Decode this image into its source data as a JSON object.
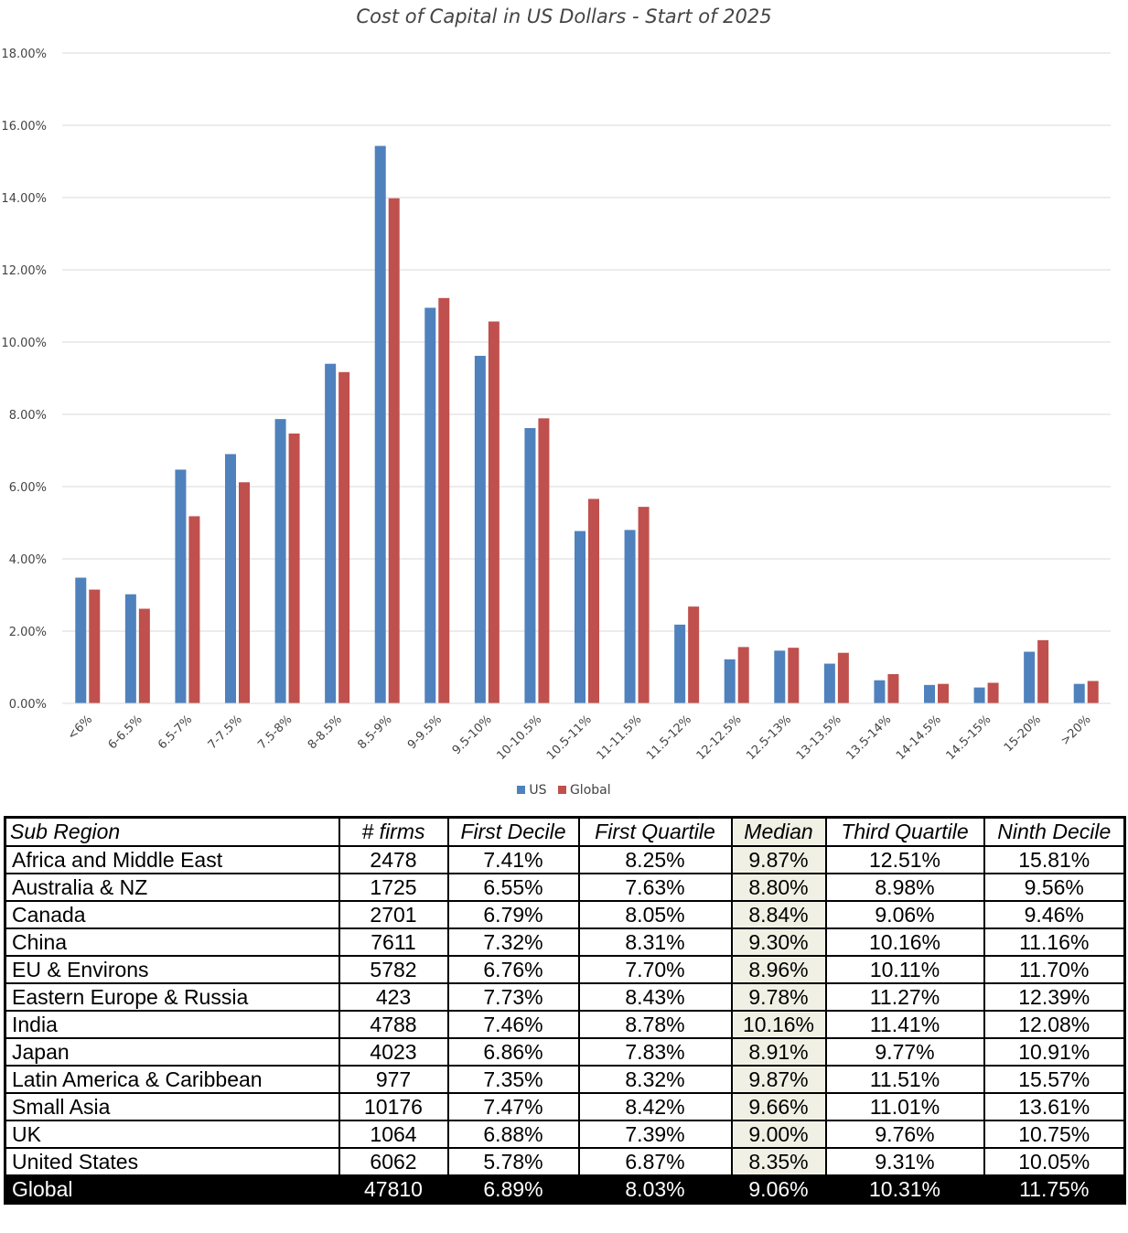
{
  "chart_data": {
    "type": "bar",
    "title": "Cost of Capital in US Dollars - Start of 2025",
    "xlabel": "",
    "ylabel": "",
    "ylim": [
      0,
      18
    ],
    "yticks": [
      "0.00%",
      "2.00%",
      "4.00%",
      "6.00%",
      "8.00%",
      "10.00%",
      "12.00%",
      "14.00%",
      "16.00%",
      "18.00%"
    ],
    "grid": true,
    "legend_position": "bottom",
    "categories": [
      "<6%",
      "6-6.5%",
      "6.5-7%",
      "7-7.5%",
      "7.5-8%",
      "8-8.5%",
      "8.5-9%",
      "9-9.5%",
      "9.5-10%",
      "10-10.5%",
      "10.5-11%",
      "11-11.5%",
      "11.5-12%",
      "12-12.5%",
      "12.5-13%",
      "13-13.5%",
      "13.5-14%",
      "14-14.5%",
      "14.5-15%",
      "15-20%",
      ">20%"
    ],
    "series": [
      {
        "name": "US",
        "color": "#4f81bd",
        "values": [
          3.48,
          3.02,
          6.47,
          6.9,
          7.87,
          9.4,
          15.43,
          10.95,
          9.62,
          7.62,
          4.77,
          4.8,
          2.18,
          1.22,
          1.46,
          1.1,
          0.64,
          0.51,
          0.44,
          1.43,
          0.54
        ]
      },
      {
        "name": "Global",
        "color": "#c0504d",
        "values": [
          3.15,
          2.62,
          5.18,
          6.12,
          7.47,
          9.17,
          13.98,
          11.22,
          10.57,
          7.89,
          5.66,
          5.44,
          2.68,
          1.56,
          1.54,
          1.4,
          0.81,
          0.54,
          0.57,
          1.75,
          0.62
        ]
      }
    ]
  },
  "table": {
    "headers": [
      "Sub Region",
      "# firms",
      "First Decile",
      "First Quartile",
      "Median",
      "Third Quartile",
      "Ninth Decile"
    ],
    "rows": [
      [
        "Africa and Middle East",
        "2478",
        "7.41%",
        "8.25%",
        "9.87%",
        "12.51%",
        "15.81%"
      ],
      [
        "Australia & NZ",
        "1725",
        "6.55%",
        "7.63%",
        "8.80%",
        "8.98%",
        "9.56%"
      ],
      [
        "Canada",
        "2701",
        "6.79%",
        "8.05%",
        "8.84%",
        "9.06%",
        "9.46%"
      ],
      [
        "China",
        "7611",
        "7.32%",
        "8.31%",
        "9.30%",
        "10.16%",
        "11.16%"
      ],
      [
        "EU & Environs",
        "5782",
        "6.76%",
        "7.70%",
        "8.96%",
        "10.11%",
        "11.70%"
      ],
      [
        "Eastern Europe & Russia",
        "423",
        "7.73%",
        "8.43%",
        "9.78%",
        "11.27%",
        "12.39%"
      ],
      [
        "India",
        "4788",
        "7.46%",
        "8.78%",
        "10.16%",
        "11.41%",
        "12.08%"
      ],
      [
        "Japan",
        "4023",
        "6.86%",
        "7.83%",
        "8.91%",
        "9.77%",
        "10.91%"
      ],
      [
        "Latin America & Caribbean",
        "977",
        "7.35%",
        "8.32%",
        "9.87%",
        "11.51%",
        "15.57%"
      ],
      [
        "Small Asia",
        "10176",
        "7.47%",
        "8.42%",
        "9.66%",
        "11.01%",
        "13.61%"
      ],
      [
        "UK",
        "1064",
        "6.88%",
        "7.39%",
        "9.00%",
        "9.76%",
        "10.75%"
      ],
      [
        "United States",
        "6062",
        "5.78%",
        "6.87%",
        "8.35%",
        "9.31%",
        "10.05%"
      ]
    ],
    "total": [
      "Global",
      "47810",
      "6.89%",
      "8.03%",
      "9.06%",
      "10.31%",
      "11.75%"
    ],
    "highlight_color": "#f1f0e4"
  }
}
